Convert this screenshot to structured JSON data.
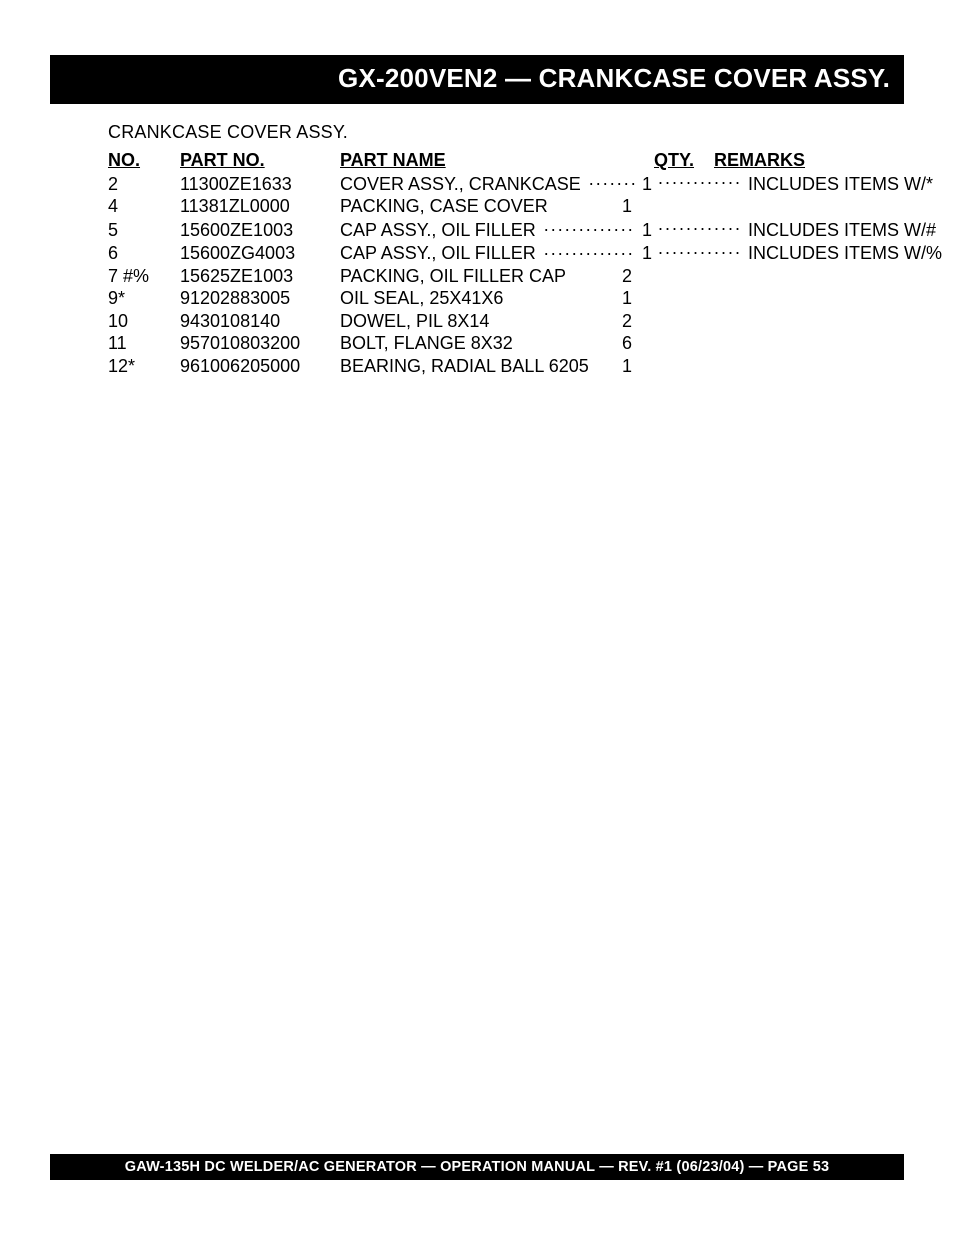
{
  "title_bar": "GX-200VEN2 — CRANKCASE COVER ASSY.",
  "subtitle": "CRANKCASE COVER ASSY.",
  "headers": {
    "no": "NO.",
    "part_no": "PART NO.",
    "part_name": "PART NAME",
    "qty": "QTY.",
    "remarks": "REMARKS"
  },
  "rows": [
    {
      "no": "2",
      "part_no": "11300ZE1633",
      "name": "COVER ASSY., CRANKCASE",
      "qty": "1",
      "remarks": "INCLUDES ITEMS W/*",
      "leader": true
    },
    {
      "no": "4",
      "part_no": "11381ZL0000",
      "name": "PACKING, CASE COVER",
      "qty": "1",
      "remarks": "",
      "leader": false
    },
    {
      "no": "5",
      "part_no": "15600ZE1003",
      "name": "CAP ASSY., OIL FILLER",
      "qty": "1",
      "remarks": "INCLUDES ITEMS W/#",
      "leader": true
    },
    {
      "no": "6",
      "part_no": "15600ZG4003",
      "name": "CAP ASSY., OIL FILLER",
      "qty": "1",
      "remarks": "INCLUDES ITEMS W/%",
      "leader": true
    },
    {
      "no": "7 #%",
      "part_no": "15625ZE1003",
      "name": "PACKING, OIL FILLER CAP",
      "qty": "2",
      "remarks": "",
      "leader": false
    },
    {
      "no": "9*",
      "part_no": "91202883005",
      "name": "OIL SEAL, 25X41X6",
      "qty": "1",
      "remarks": "",
      "leader": false
    },
    {
      "no": "10",
      "part_no": "9430108140",
      "name": "DOWEL, PIL 8X14",
      "qty": "2",
      "remarks": "",
      "leader": false
    },
    {
      "no": "11",
      "part_no": "957010803200",
      "name": "BOLT, FLANGE 8X32",
      "qty": "6",
      "remarks": "",
      "leader": false
    },
    {
      "no": "12*",
      "part_no": "961006205000",
      "name": "BEARING, RADIAL BALL 6205",
      "qty": "1",
      "remarks": "",
      "leader": false
    }
  ],
  "footer": "GAW-135H DC WELDER/AC GENERATOR — OPERATION MANUAL — REV. #1 (06/23/04) — PAGE 53",
  "colors": {
    "bar_bg": "#000000",
    "bar_fg": "#ffffff",
    "page_bg": "#ffffff",
    "text": "#000000"
  },
  "typography": {
    "title_size_pt": 20,
    "body_size_pt": 13,
    "footer_size_pt": 11,
    "weight_title": "bold",
    "weight_header": "bold"
  }
}
